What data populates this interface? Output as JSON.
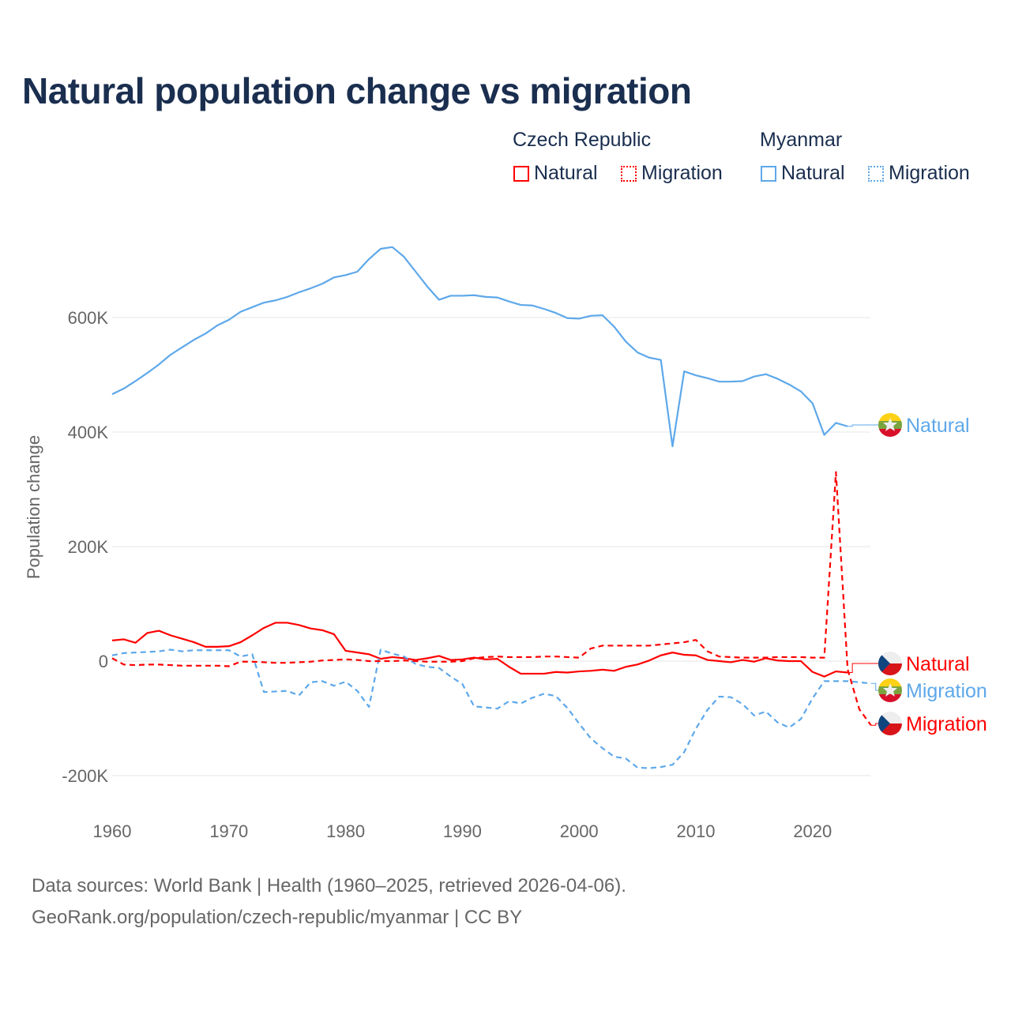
{
  "title": "Natural population change vs migration",
  "legend": {
    "groups": [
      {
        "country": "Czech Republic",
        "items": [
          "Natural",
          "Migration"
        ],
        "color": "#ff0000"
      },
      {
        "country": "Myanmar",
        "items": [
          "Natural",
          "Migration"
        ],
        "color": "#5ea8ea"
      }
    ]
  },
  "footer": {
    "line1": "Data sources: World Bank | Health (1960–2025, retrieved 2026-04-06).",
    "line2": "GeoRank.org/population/czech-republic/myanmar | CC BY"
  },
  "chart_data": {
    "type": "line",
    "title": "Natural population change vs migration",
    "xlabel": "",
    "ylabel": "Population change",
    "xlim": [
      1960,
      2025
    ],
    "ylim": [
      -200000,
      700000
    ],
    "x_ticks": [
      "1960",
      "1970",
      "1980",
      "1990",
      "2000",
      "2010",
      "2020"
    ],
    "y_ticks": [
      {
        "v": -200000,
        "label": "-200K"
      },
      {
        "v": 0,
        "label": "0"
      },
      {
        "v": 200000,
        "label": "200K"
      },
      {
        "v": 400000,
        "label": "400K"
      },
      {
        "v": 600000,
        "label": "600K"
      }
    ],
    "grid": true,
    "series": [
      {
        "name": "Myanmar Natural",
        "label": "Natural",
        "country": "Myanmar",
        "style": "solid",
        "color": "#5ea8ea",
        "start": 1960,
        "values_k": [
          466,
          476,
          489,
          503,
          518,
          535,
          548,
          561,
          572,
          586,
          596,
          610,
          618,
          626,
          630,
          636,
          644,
          651,
          659,
          670,
          674,
          680,
          702,
          720,
          723,
          706,
          680,
          654,
          631,
          638,
          638,
          639,
          636,
          635,
          628,
          622,
          621,
          615,
          608,
          599,
          598,
          603,
          604,
          584,
          558,
          539,
          530,
          526,
          375,
          506,
          499,
          494,
          488,
          488,
          489,
          497,
          501,
          493,
          483,
          471,
          450,
          395,
          416,
          410
        ]
      },
      {
        "name": "Czech Republic Natural",
        "label": "Natural",
        "country": "Czech Republic",
        "style": "solid",
        "color": "#ff0000",
        "start": 1960,
        "values_k": [
          36,
          38,
          32,
          49,
          53,
          45,
          39,
          33,
          25,
          25,
          26,
          33,
          45,
          58,
          67,
          67,
          63,
          57,
          54,
          47,
          18,
          15,
          12,
          4,
          7,
          5,
          2,
          5,
          9,
          2,
          3,
          6,
          3,
          4,
          -10,
          -22,
          -22,
          -22,
          -19,
          -20,
          -18,
          -17,
          -15,
          -17,
          -10,
          -6,
          1,
          10,
          15,
          11,
          10,
          2,
          0,
          -2,
          2,
          -1,
          5,
          1,
          0,
          0,
          -19,
          -27,
          -18,
          -20
        ]
      },
      {
        "name": "Myanmar Migration",
        "label": "Migration",
        "country": "Myanmar",
        "style": "dashed",
        "color": "#5ea8ea",
        "start": 1960,
        "values_k": [
          10,
          14,
          15,
          16,
          17,
          20,
          17,
          19,
          19,
          19,
          19,
          8,
          12,
          -54,
          -53,
          -52,
          -60,
          -37,
          -35,
          -43,
          -36,
          -52,
          -80,
          20,
          13,
          8,
          -5,
          -10,
          -12,
          -27,
          -40,
          -79,
          -81,
          -83,
          -70,
          -74,
          -64,
          -57,
          -61,
          -82,
          -109,
          -135,
          -152,
          -167,
          -170,
          -186,
          -187,
          -185,
          -181,
          -159,
          -118,
          -85,
          -62,
          -63,
          -75,
          -95,
          -88,
          -107,
          -116,
          -101,
          -65,
          -35,
          -35,
          -35,
          -37,
          -39
        ]
      },
      {
        "name": "Czech Republic Migration",
        "label": "Migration",
        "country": "Czech Republic",
        "style": "dashed",
        "color": "#ff0000",
        "start": 1960,
        "values_k": [
          5,
          -6,
          -7,
          -6,
          -6,
          -7,
          -8,
          -8,
          -8,
          -8,
          -9,
          -1,
          -1,
          -2,
          -3,
          -3,
          -2,
          -1,
          1,
          2,
          3,
          2,
          0,
          0,
          0,
          1,
          0,
          -1,
          -1,
          -1,
          0,
          5,
          7,
          8,
          7,
          7,
          7,
          8,
          8,
          7,
          6,
          22,
          27,
          27,
          27,
          27,
          27,
          29,
          31,
          33,
          37,
          17,
          8,
          7,
          6,
          6,
          6,
          7,
          7,
          7,
          6,
          6,
          330,
          -14,
          -84,
          -112
        ]
      }
    ]
  }
}
